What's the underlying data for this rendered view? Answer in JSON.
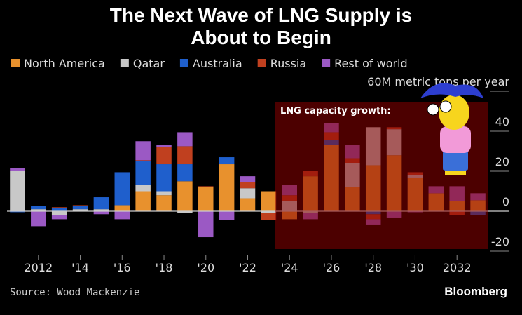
{
  "chart_data": {
    "type": "bar",
    "stacked": true,
    "title": "The Next Wave of LNG Supply is About to Begin",
    "annotation": "LNG capacity growth:",
    "source": "Source: Wood Mackenzie",
    "brand": "Bloomberg",
    "categories": [
      null,
      "2012",
      null,
      "'14",
      null,
      "'16",
      null,
      "'18",
      null,
      "'20",
      null,
      "'22",
      null,
      "'24",
      null,
      "'26",
      null,
      "'28",
      null,
      "'30",
      null,
      "2032",
      null
    ],
    "series": [
      {
        "name": "North America",
        "color": "#e8912d",
        "values": [
          0,
          0,
          0,
          0,
          0,
          3,
          10,
          8,
          15,
          12,
          23.5,
          6.5,
          10,
          -4,
          17.5,
          33,
          12,
          23,
          28,
          16.5,
          9,
          5,
          5.5
        ]
      },
      {
        "name": "Qatar",
        "color": "#c8c8c8",
        "values": [
          20,
          1,
          -2,
          1,
          1,
          0,
          3,
          2,
          -1,
          0,
          0,
          5,
          -1,
          5,
          -1,
          0,
          12,
          19,
          13,
          1.5,
          0,
          0,
          0
        ]
      },
      {
        "name": "Australia",
        "color": "#1f5fcc",
        "values": [
          -0.5,
          1.5,
          1.5,
          1.5,
          6,
          16.5,
          12,
          13.5,
          8.5,
          0,
          3.5,
          0,
          0,
          0,
          0,
          2.5,
          0,
          -1.5,
          0,
          0,
          0,
          0,
          -2
        ]
      },
      {
        "name": "Russia",
        "color": "#c0401f",
        "values": [
          0,
          0,
          0.5,
          0.5,
          0,
          0,
          0.5,
          8.5,
          9,
          0.5,
          0,
          3,
          -3.5,
          3,
          2.5,
          4,
          2.5,
          -2.5,
          1,
          1.5,
          0,
          -2,
          0
        ]
      },
      {
        "name": "Rest of world",
        "color": "#9b59c4",
        "values": [
          1.5,
          -7.5,
          -2,
          0,
          -1.5,
          -4,
          9.5,
          1,
          7,
          -13,
          -4.5,
          3,
          0,
          5,
          -3,
          4.5,
          6.5,
          -3,
          -3.5,
          -0.5,
          3.5,
          7.5,
          3.5
        ]
      }
    ],
    "ylim": [
      -25,
      65
    ],
    "yticks": [
      -20,
      0,
      20,
      40,
      {
        "value": 60,
        "label": "60M metric tons per year"
      }
    ]
  }
}
